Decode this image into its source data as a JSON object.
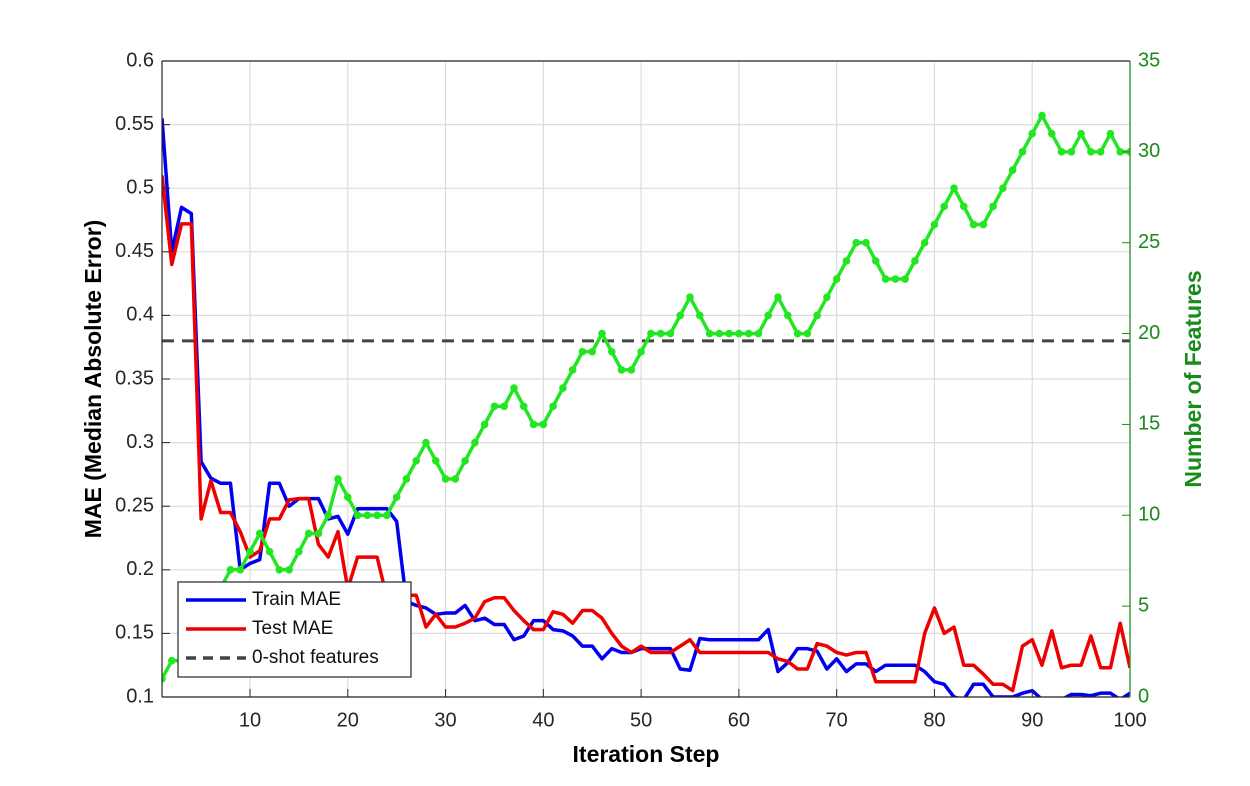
{
  "chart_data": {
    "type": "line",
    "x_label": "Iteration Step",
    "y_label": "MAE (Median Absolute Error)",
    "y2_label": "Number of Features",
    "x": [
      1,
      2,
      3,
      4,
      5,
      6,
      7,
      8,
      9,
      10,
      11,
      12,
      13,
      14,
      15,
      16,
      17,
      18,
      19,
      20,
      21,
      22,
      23,
      24,
      25,
      26,
      27,
      28,
      29,
      30,
      31,
      32,
      33,
      34,
      35,
      36,
      37,
      38,
      39,
      40,
      41,
      42,
      43,
      44,
      45,
      46,
      47,
      48,
      49,
      50,
      51,
      52,
      53,
      54,
      55,
      56,
      57,
      58,
      59,
      60,
      61,
      62,
      63,
      64,
      65,
      66,
      67,
      68,
      69,
      70,
      71,
      72,
      73,
      74,
      75,
      76,
      77,
      78,
      79,
      80,
      81,
      82,
      83,
      84,
      85,
      86,
      87,
      88,
      89,
      90,
      91,
      92,
      93,
      94,
      95,
      96,
      97,
      98,
      99,
      100
    ],
    "xlim": [
      1,
      100
    ],
    "xticks": [
      10,
      20,
      30,
      40,
      50,
      60,
      70,
      80,
      90,
      100
    ],
    "ylim": [
      0.1,
      0.6
    ],
    "yticks": [
      0.1,
      0.15,
      0.2,
      0.25,
      0.3,
      0.35,
      0.4,
      0.45,
      0.5,
      0.55,
      0.6
    ],
    "y2lim": [
      0,
      35
    ],
    "y2ticks": [
      0,
      5,
      10,
      15,
      20,
      25,
      30,
      35
    ],
    "y2_color": "#1a8a1a",
    "grid": true,
    "legend_position": "lower-left",
    "series": [
      {
        "name": "Train MAE",
        "color": "#0000ee",
        "values": [
          0.555,
          0.45,
          0.485,
          0.48,
          0.285,
          0.272,
          0.268,
          0.268,
          0.2,
          0.205,
          0.208,
          0.268,
          0.268,
          0.25,
          0.256,
          0.256,
          0.256,
          0.24,
          0.242,
          0.228,
          0.248,
          0.248,
          0.248,
          0.248,
          0.238,
          0.175,
          0.172,
          0.17,
          0.165,
          0.166,
          0.166,
          0.172,
          0.16,
          0.162,
          0.157,
          0.157,
          0.145,
          0.148,
          0.16,
          0.16,
          0.153,
          0.152,
          0.148,
          0.14,
          0.14,
          0.13,
          0.138,
          0.135,
          0.135,
          0.138,
          0.138,
          0.138,
          0.138,
          0.122,
          0.121,
          0.146,
          0.145,
          0.145,
          0.145,
          0.145,
          0.145,
          0.145,
          0.153,
          0.12,
          0.127,
          0.138,
          0.138,
          0.136,
          0.122,
          0.13,
          0.12,
          0.126,
          0.126,
          0.12,
          0.125,
          0.125,
          0.125,
          0.125,
          0.12,
          0.112,
          0.11,
          0.1,
          0.098,
          0.11,
          0.11,
          0.1,
          0.1,
          0.1,
          0.103,
          0.105,
          0.098,
          0.098,
          0.098,
          0.102,
          0.102,
          0.101,
          0.103,
          0.103,
          0.098,
          0.103
        ]
      },
      {
        "name": "Test MAE",
        "color": "#ee0000",
        "values": [
          0.51,
          0.44,
          0.472,
          0.472,
          0.24,
          0.27,
          0.245,
          0.245,
          0.23,
          0.21,
          0.215,
          0.24,
          0.24,
          0.255,
          0.256,
          0.256,
          0.22,
          0.21,
          0.23,
          0.185,
          0.21,
          0.21,
          0.21,
          0.178,
          0.18,
          0.18,
          0.18,
          0.155,
          0.165,
          0.155,
          0.155,
          0.158,
          0.162,
          0.175,
          0.178,
          0.178,
          0.168,
          0.16,
          0.153,
          0.153,
          0.167,
          0.165,
          0.158,
          0.168,
          0.168,
          0.162,
          0.15,
          0.14,
          0.135,
          0.14,
          0.135,
          0.135,
          0.135,
          0.14,
          0.145,
          0.135,
          0.135,
          0.135,
          0.135,
          0.135,
          0.135,
          0.135,
          0.135,
          0.13,
          0.128,
          0.122,
          0.122,
          0.142,
          0.14,
          0.135,
          0.133,
          0.135,
          0.135,
          0.112,
          0.112,
          0.112,
          0.112,
          0.112,
          0.15,
          0.17,
          0.15,
          0.155,
          0.125,
          0.125,
          0.118,
          0.11,
          0.11,
          0.105,
          0.14,
          0.145,
          0.125,
          0.152,
          0.123,
          0.125,
          0.125,
          0.148,
          0.123,
          0.123,
          0.158,
          0.123
        ]
      },
      {
        "name": "Number of Features",
        "color": "#22e622",
        "axis": "y2",
        "markers": true,
        "values": [
          1,
          2,
          2,
          3,
          4,
          5,
          6,
          7,
          7,
          8,
          9,
          8,
          7,
          7,
          8,
          9,
          9,
          10,
          12,
          11,
          10,
          10,
          10,
          10,
          11,
          12,
          13,
          14,
          13,
          12,
          12,
          13,
          14,
          15,
          16,
          16,
          17,
          16,
          15,
          15,
          16,
          17,
          18,
          19,
          19,
          20,
          19,
          18,
          18,
          19,
          20,
          20,
          20,
          21,
          22,
          21,
          20,
          20,
          20,
          20,
          20,
          20,
          21,
          22,
          21,
          20,
          20,
          21,
          22,
          23,
          24,
          25,
          25,
          24,
          23,
          23,
          23,
          24,
          25,
          26,
          27,
          28,
          27,
          26,
          26,
          27,
          28,
          29,
          30,
          31,
          32,
          31,
          30,
          30,
          31,
          30,
          30,
          31,
          30,
          30
        ]
      }
    ],
    "reference_lines": [
      {
        "name": "0-shot features",
        "value": 0.38,
        "color": "#444444",
        "dash": true
      }
    ]
  }
}
